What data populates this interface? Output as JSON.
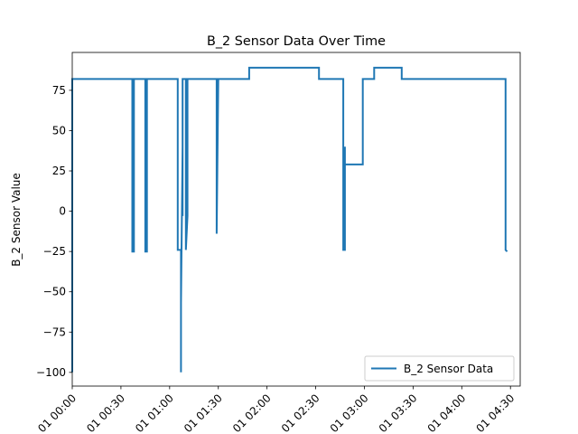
{
  "chart_data": {
    "type": "line",
    "title": "B_2 Sensor Data Over Time",
    "xlabel": "",
    "ylabel": "B_2 Sensor Value",
    "x_is_time": true,
    "xlim": [
      "00:00",
      "04:36"
    ],
    "ylim": [
      -108.5,
      98.5
    ],
    "y_ticks": [
      -100,
      -75,
      -50,
      -25,
      0,
      25,
      50,
      75
    ],
    "x_ticks": [
      {
        "value": "00:00",
        "label": "01 00:00"
      },
      {
        "value": "00:30",
        "label": "01 00:30"
      },
      {
        "value": "01:00",
        "label": "01 01:00"
      },
      {
        "value": "01:30",
        "label": "01 01:30"
      },
      {
        "value": "02:00",
        "label": "01 02:00"
      },
      {
        "value": "02:30",
        "label": "01 02:30"
      },
      {
        "value": "03:00",
        "label": "01 03:00"
      },
      {
        "value": "03:30",
        "label": "01 03:30"
      },
      {
        "value": "04:00",
        "label": "01 04:00"
      },
      {
        "value": "04:30",
        "label": "01 04:30"
      }
    ],
    "grid": false,
    "legend_position": "lower-right",
    "series": [
      {
        "name": "B_2 Sensor Data",
        "color": "#1f77b4",
        "points": [
          [
            "00:00",
            -57
          ],
          [
            "00:00",
            -100
          ],
          [
            "00:00",
            40
          ],
          [
            "00:00",
            82
          ],
          [
            "00:37",
            82
          ],
          [
            "00:37",
            -25
          ],
          [
            "00:38",
            -25
          ],
          [
            "00:38",
            82
          ],
          [
            "00:45",
            82
          ],
          [
            "00:45",
            -25
          ],
          [
            "00:46",
            -25
          ],
          [
            "00:46",
            40
          ],
          [
            "00:46",
            -3
          ],
          [
            "00:46",
            82
          ],
          [
            "01:05",
            82
          ],
          [
            "01:05",
            -24
          ],
          [
            "01:07",
            -24
          ],
          [
            "01:07",
            -100
          ],
          [
            "01:07",
            -57
          ],
          [
            "01:08",
            40
          ],
          [
            "01:08",
            -3
          ],
          [
            "01:08",
            82
          ],
          [
            "01:10",
            82
          ],
          [
            "01:10",
            -24
          ],
          [
            "01:11",
            -3
          ],
          [
            "01:11",
            82
          ],
          [
            "01:29",
            82
          ],
          [
            "01:29",
            -14
          ],
          [
            "01:30",
            82
          ],
          [
            "01:49",
            82
          ],
          [
            "01:49",
            89
          ],
          [
            "02:32",
            89
          ],
          [
            "02:32",
            82
          ],
          [
            "02:47",
            82
          ],
          [
            "02:47",
            -24
          ],
          [
            "02:48",
            -24
          ],
          [
            "02:48",
            40
          ],
          [
            "02:48",
            29
          ],
          [
            "02:59",
            29
          ],
          [
            "02:59",
            82
          ],
          [
            "03:06",
            82
          ],
          [
            "03:06",
            89
          ],
          [
            "03:23",
            89
          ],
          [
            "03:23",
            82
          ],
          [
            "04:27",
            82
          ],
          [
            "04:27",
            -24
          ],
          [
            "04:28",
            -25
          ]
        ]
      }
    ]
  }
}
